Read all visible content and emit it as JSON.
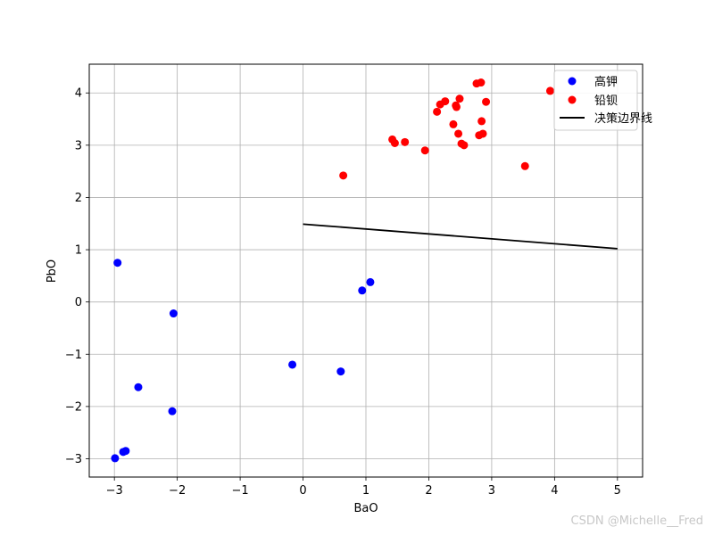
{
  "chart_data": {
    "type": "scatter",
    "title": "",
    "xlabel": "BaO",
    "ylabel": "PbO",
    "xlim": [
      -3.4,
      5.4
    ],
    "ylim": [
      -3.35,
      4.55
    ],
    "xticks": [
      -3,
      -2,
      -1,
      0,
      1,
      2,
      3,
      4,
      5
    ],
    "yticks": [
      -3,
      -2,
      -1,
      0,
      1,
      2,
      3,
      4
    ],
    "grid": true,
    "legend_position": "top-right",
    "series": [
      {
        "name": "高钾",
        "kind": "scatter",
        "color": "#0000ff",
        "points": [
          [
            -2.95,
            0.75
          ],
          [
            -2.06,
            -0.22
          ],
          [
            -2.62,
            -1.63
          ],
          [
            -2.08,
            -2.09
          ],
          [
            -2.99,
            -2.99
          ],
          [
            -2.86,
            -2.87
          ],
          [
            -2.82,
            -2.85
          ],
          [
            -0.17,
            -1.2
          ],
          [
            0.6,
            -1.33
          ],
          [
            0.94,
            0.22
          ],
          [
            1.07,
            0.38
          ]
        ]
      },
      {
        "name": "铅钡",
        "kind": "scatter",
        "color": "#ff0000",
        "points": [
          [
            0.64,
            2.42
          ],
          [
            1.42,
            3.11
          ],
          [
            1.46,
            3.04
          ],
          [
            1.62,
            3.06
          ],
          [
            1.94,
            2.9
          ],
          [
            2.13,
            3.64
          ],
          [
            2.18,
            3.78
          ],
          [
            2.26,
            3.84
          ],
          [
            2.39,
            3.4
          ],
          [
            2.43,
            3.76
          ],
          [
            2.44,
            3.73
          ],
          [
            2.47,
            3.22
          ],
          [
            2.49,
            3.89
          ],
          [
            2.52,
            3.03
          ],
          [
            2.56,
            3.0
          ],
          [
            2.76,
            4.18
          ],
          [
            2.83,
            4.2
          ],
          [
            2.8,
            3.19
          ],
          [
            2.86,
            3.22
          ],
          [
            2.84,
            3.46
          ],
          [
            2.91,
            3.83
          ],
          [
            3.53,
            2.6
          ],
          [
            3.93,
            4.04
          ]
        ]
      },
      {
        "name": "决策边界线",
        "kind": "line",
        "color": "#000000",
        "points": [
          [
            0,
            1.49
          ],
          [
            5,
            1.02
          ]
        ]
      }
    ]
  },
  "watermark": "CSDN @Michelle__Fred"
}
